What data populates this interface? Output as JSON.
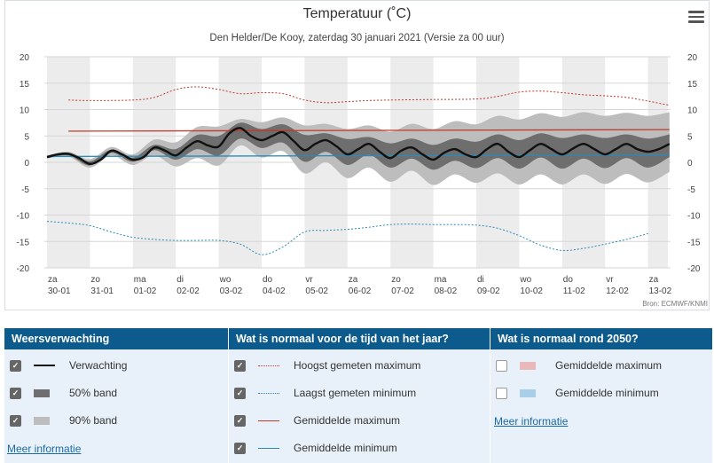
{
  "header": {
    "menu_icon": "hamburger-menu-icon"
  },
  "chart_data": {
    "type": "line",
    "title": "Temperatuur (˚C)",
    "subtitle": "Den Helder/De Kooy, zaterdag 30 januari 2021 (Versie za 00 uur)",
    "credit": "Bron: ECMWF/KNMI",
    "ylim": [
      -20,
      20
    ],
    "y_ticks": [
      20,
      15,
      10,
      5,
      0,
      -5,
      -10,
      -15,
      -20
    ],
    "x_range_days": [
      0,
      14.5
    ],
    "x_ticks": [
      {
        "day": "za",
        "date": "30-01"
      },
      {
        "day": "zo",
        "date": "31-01"
      },
      {
        "day": "ma",
        "date": "01-02"
      },
      {
        "day": "di",
        "date": "02-02"
      },
      {
        "day": "wo",
        "date": "03-02"
      },
      {
        "day": "do",
        "date": "04-02"
      },
      {
        "day": "vr",
        "date": "05-02"
      },
      {
        "day": "za",
        "date": "06-02"
      },
      {
        "day": "zo",
        "date": "07-02"
      },
      {
        "day": "ma",
        "date": "08-02"
      },
      {
        "day": "di",
        "date": "09-02"
      },
      {
        "day": "wo",
        "date": "10-02"
      },
      {
        "day": "do",
        "date": "11-02"
      },
      {
        "day": "vr",
        "date": "12-02"
      },
      {
        "day": "za",
        "date": "13-02"
      }
    ],
    "grid": true,
    "shaded_days": [
      0,
      2,
      4,
      6,
      8,
      10,
      12,
      14
    ],
    "colors": {
      "forecast": "#111111",
      "band50": "#6e6e6e",
      "band90": "#bdbdbd",
      "highest_max": "#c0392b",
      "lowest_min": "#2a8ab8",
      "avg_max": "#c0392b",
      "avg_min": "#2a8ab8",
      "shade": "#ececec"
    },
    "series": [
      {
        "name": "Verwachting",
        "key": "forecast",
        "x": [
          0,
          0.25,
          0.5,
          0.75,
          1,
          1.25,
          1.5,
          1.75,
          2,
          2.25,
          2.5,
          2.75,
          3,
          3.25,
          3.5,
          3.75,
          4,
          4.25,
          4.5,
          4.75,
          5,
          5.25,
          5.5,
          5.75,
          6,
          6.25,
          6.5,
          6.75,
          7,
          7.25,
          7.5,
          7.75,
          8,
          8.25,
          8.5,
          8.75,
          9,
          9.25,
          9.5,
          9.75,
          10,
          10.25,
          10.5,
          10.75,
          11,
          11.25,
          11.5,
          11.75,
          12,
          12.25,
          12.5,
          12.75,
          13,
          13.25,
          13.5,
          13.75,
          14,
          14.25,
          14.5
        ],
        "y": [
          1.0,
          1.5,
          1.6,
          0.8,
          -0.3,
          0.5,
          2.2,
          1.5,
          0.5,
          1.0,
          2.8,
          2.2,
          1.3,
          2.8,
          4.0,
          3.2,
          3.0,
          5.5,
          6.5,
          5.0,
          4.2,
          5.0,
          5.7,
          4.0,
          2.3,
          3.5,
          4.2,
          3.0,
          1.5,
          2.5,
          3.5,
          2.0,
          0.8,
          2.2,
          2.8,
          1.5,
          0.5,
          1.8,
          2.5,
          1.5,
          1.0,
          2.5,
          3.5,
          2.0,
          1.0,
          2.3,
          3.5,
          2.5,
          1.5,
          2.6,
          3.5,
          2.5,
          1.5,
          2.5,
          3.5,
          2.5,
          2.0,
          2.5,
          3.5
        ]
      },
      {
        "name": "50% band",
        "key": "band50",
        "x": [
          0,
          0.5,
          1,
          1.5,
          2,
          2.5,
          3,
          3.5,
          4,
          4.5,
          5,
          5.5,
          6,
          6.5,
          7,
          7.5,
          8,
          8.5,
          9,
          9.5,
          10,
          10.5,
          11,
          11.5,
          12,
          12.5,
          13,
          13.5,
          14,
          14.5
        ],
        "upper": [
          1.2,
          1.8,
          0.2,
          2.4,
          0.9,
          3.3,
          2.5,
          5.2,
          5.0,
          7.5,
          6.3,
          7.2,
          5.2,
          5.5,
          4.4,
          4.8,
          3.6,
          4.5,
          3.3,
          4.5,
          3.9,
          5.3,
          4.2,
          5.5,
          4.6,
          5.3,
          4.6,
          5.3,
          4.5,
          5.3
        ],
        "lower": [
          0.8,
          1.3,
          -0.6,
          1.8,
          0.1,
          2.3,
          0.5,
          2.5,
          1.3,
          4.5,
          2.7,
          3.7,
          0.1,
          2.0,
          -0.5,
          1.4,
          -1.0,
          0.7,
          -1.4,
          0.3,
          -1.1,
          0.8,
          -1.2,
          0.9,
          -1.2,
          0.7,
          -1.1,
          0.8,
          -1.0,
          1.0
        ]
      },
      {
        "name": "90% band",
        "key": "band90",
        "x": [
          0,
          0.5,
          1,
          1.5,
          2,
          2.5,
          3,
          3.5,
          4,
          4.5,
          5,
          5.5,
          6,
          6.5,
          7,
          7.5,
          8,
          8.5,
          9,
          9.5,
          10,
          10.5,
          11,
          11.5,
          12,
          12.5,
          13,
          13.5,
          14,
          14.5
        ],
        "upper": [
          1.3,
          2.0,
          0.6,
          2.9,
          1.5,
          4.3,
          3.8,
          6.7,
          6.8,
          8.2,
          7.6,
          8.5,
          7.0,
          7.3,
          6.3,
          7.0,
          5.8,
          7.3,
          6.3,
          7.8,
          7.2,
          8.8,
          8.1,
          9.3,
          8.6,
          9.5,
          8.8,
          9.4,
          8.8,
          9.5
        ],
        "lower": [
          0.7,
          1.1,
          -1.0,
          1.3,
          -0.5,
          1.3,
          -0.8,
          0.8,
          -0.6,
          3.2,
          0.9,
          2.1,
          -2.1,
          0.0,
          -3.0,
          -1.0,
          -3.7,
          -1.6,
          -4.3,
          -2.3,
          -3.9,
          -2.1,
          -4.2,
          -2.3,
          -4.2,
          -2.3,
          -4.1,
          -2.2,
          -3.8,
          -1.8
        ]
      },
      {
        "name": "Hoogst gemeten maximum",
        "key": "highest_max",
        "dash": "2,2",
        "x": [
          0.5,
          1,
          2,
          2.5,
          3,
          3.5,
          4,
          4.5,
          5,
          5.5,
          6,
          6.5,
          7,
          7.5,
          8,
          9,
          10,
          10.5,
          11,
          11.5,
          12,
          12.5,
          13,
          13.5,
          14,
          14.5
        ],
        "y": [
          11.8,
          11.7,
          11.8,
          12.3,
          13.8,
          14.3,
          13.8,
          13.0,
          13.2,
          13.0,
          11.8,
          11.3,
          11.5,
          11.7,
          11.8,
          11.9,
          12.0,
          12.5,
          13.3,
          13.5,
          13.2,
          12.8,
          12.6,
          12.3,
          11.6,
          10.8
        ]
      },
      {
        "name": "Laagst gemeten minimum",
        "key": "lowest_min",
        "dash": "2,2",
        "x": [
          0,
          0.5,
          1,
          1.5,
          2,
          2.5,
          3,
          3.5,
          4,
          4.5,
          5,
          5.5,
          6,
          6.5,
          7,
          7.5,
          8,
          8.5,
          9,
          9.5,
          10,
          10.5,
          11,
          11.5,
          12,
          12.5,
          13,
          13.5,
          14
        ],
        "y": [
          -11.2,
          -11.5,
          -12.0,
          -13.2,
          -14.2,
          -14.6,
          -14.8,
          -14.8,
          -14.8,
          -15.5,
          -17.5,
          -16.0,
          -13.2,
          -12.9,
          -12.7,
          -12.3,
          -11.8,
          -11.7,
          -11.8,
          -11.8,
          -11.9,
          -12.5,
          -13.9,
          -15.7,
          -16.7,
          -16.3,
          -15.5,
          -14.6,
          -13.5
        ]
      },
      {
        "name": "Gemiddelde maximum",
        "key": "avg_max",
        "x": [
          0.5,
          14.5
        ],
        "y": [
          5.9,
          6.2
        ]
      },
      {
        "name": "Gemiddelde minimum",
        "key": "avg_min",
        "x": [
          0,
          14.5
        ],
        "y": [
          1.1,
          1.4
        ]
      }
    ]
  },
  "legend": {
    "col1": {
      "title": "Weersverwachting",
      "items": [
        {
          "label": "Verwachting",
          "checked": true
        },
        {
          "label": "50% band",
          "checked": true
        },
        {
          "label": "90% band",
          "checked": true
        }
      ],
      "link": "Meer informatie"
    },
    "col2": {
      "title": "Wat is normaal voor de tijd van het jaar?",
      "items": [
        {
          "label": "Hoogst gemeten maximum",
          "checked": true
        },
        {
          "label": "Laagst gemeten minimum",
          "checked": true
        },
        {
          "label": "Gemiddelde maximum",
          "checked": true
        },
        {
          "label": "Gemiddelde minimum",
          "checked": true
        }
      ]
    },
    "col3": {
      "title": "Wat is normaal rond 2050?",
      "items": [
        {
          "label": "Gemiddelde maximum",
          "checked": false,
          "color": "#e9b8bb"
        },
        {
          "label": "Gemiddelde minimum",
          "checked": false,
          "color": "#a9cfe8"
        }
      ],
      "link": "Meer informatie"
    }
  }
}
